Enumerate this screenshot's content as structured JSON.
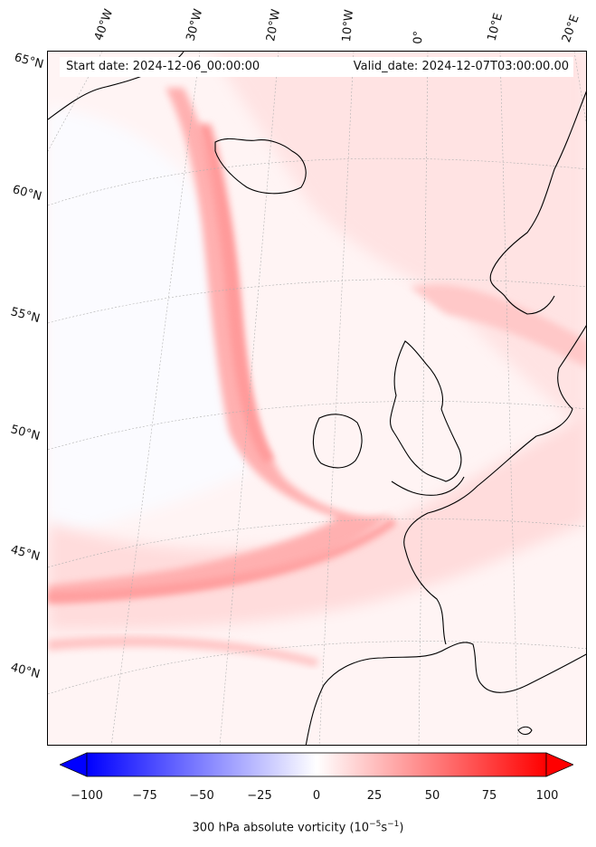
{
  "map": {
    "header": {
      "start_date": "Start date: 2024-12-06_00:00:00",
      "valid_date": "Valid_date: 2024-12-07T03:00:00.00"
    },
    "longitude_labels": [
      "40°W",
      "30°W",
      "20°W",
      "10°W",
      "0°",
      "10°E",
      "20°E"
    ],
    "latitude_labels": [
      "65°N",
      "60°N",
      "55°N",
      "50°N",
      "45°N",
      "40°N"
    ],
    "field": "300 hPa absolute vorticity",
    "colors": {
      "negative_max": "#0000ff",
      "zero": "#ffffff",
      "positive_max": "#ff0000",
      "coastline": "#000000",
      "gridline": "#aaaaaa"
    }
  },
  "colorbar": {
    "ticks": [
      "−100",
      "−75",
      "−50",
      "−25",
      "0",
      "25",
      "50",
      "75",
      "100"
    ],
    "label_main": "300 hPa absolute vorticity (10",
    "label_exp1": "−5",
    "label_mid": "s",
    "label_exp2": "−1",
    "label_end": ")",
    "range": [
      -100,
      100
    ]
  }
}
